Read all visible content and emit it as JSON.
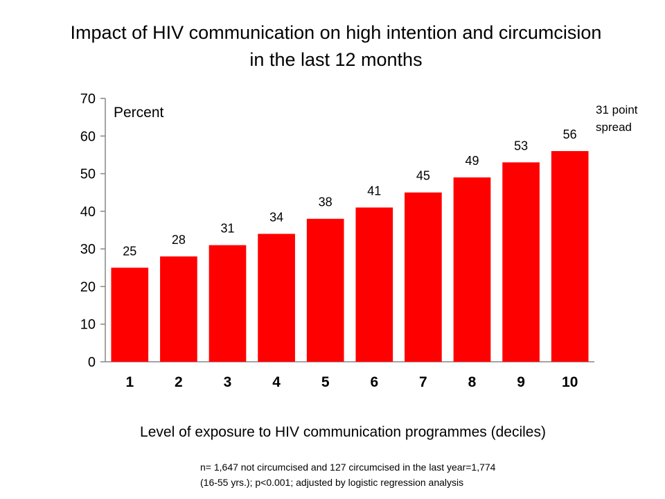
{
  "title": {
    "line1": "Impact of HIV communication on high intention and circumcision",
    "line2": "in the last 12 months"
  },
  "annotation": {
    "line1": "31 point",
    "line2": "spread"
  },
  "footnote": {
    "line1": "n= 1,647  not circumcised and 127 circumcised in the last year=1,774",
    "line2": "(16-55 yrs.); p<0.001; adjusted by logistic regression analysis"
  },
  "chart_data": {
    "type": "bar",
    "title": "Impact of HIV communication on high intention and circumcision in the last 12 months",
    "ylabel": "Percent",
    "xlabel": "Level of exposure to HIV communication programmes (deciles)",
    "categories": [
      "1",
      "2",
      "3",
      "4",
      "5",
      "6",
      "7",
      "8",
      "9",
      "10"
    ],
    "values": [
      25,
      28,
      31,
      34,
      38,
      41,
      45,
      49,
      53,
      56
    ],
    "ylim": [
      0,
      70
    ],
    "yticks": [
      "0",
      "10",
      "20",
      "30",
      "40",
      "50",
      "60",
      "70"
    ],
    "grid": false,
    "bar_color": "#ff0000"
  }
}
